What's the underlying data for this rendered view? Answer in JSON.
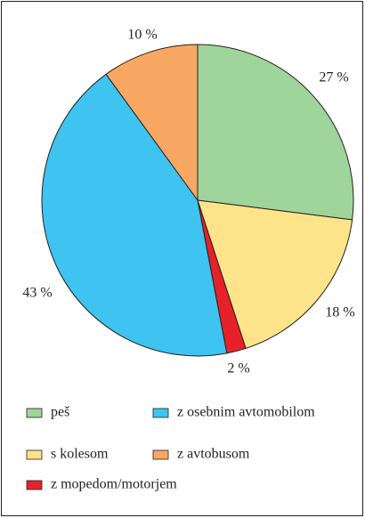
{
  "chart_data": {
    "type": "pie",
    "categories": [
      "peš",
      "s kolesom",
      "z mopedom/motorjem",
      "z osebnim avtomobilom",
      "z avtobusom"
    ],
    "values": [
      27,
      18,
      2,
      43,
      10
    ],
    "value_labels": [
      "27 %",
      "18 %",
      "2 %",
      "43 %",
      "10 %"
    ],
    "colors": [
      "#9fd49a",
      "#fde48a",
      "#e62129",
      "#3fc3f0",
      "#f8a862"
    ]
  }
}
